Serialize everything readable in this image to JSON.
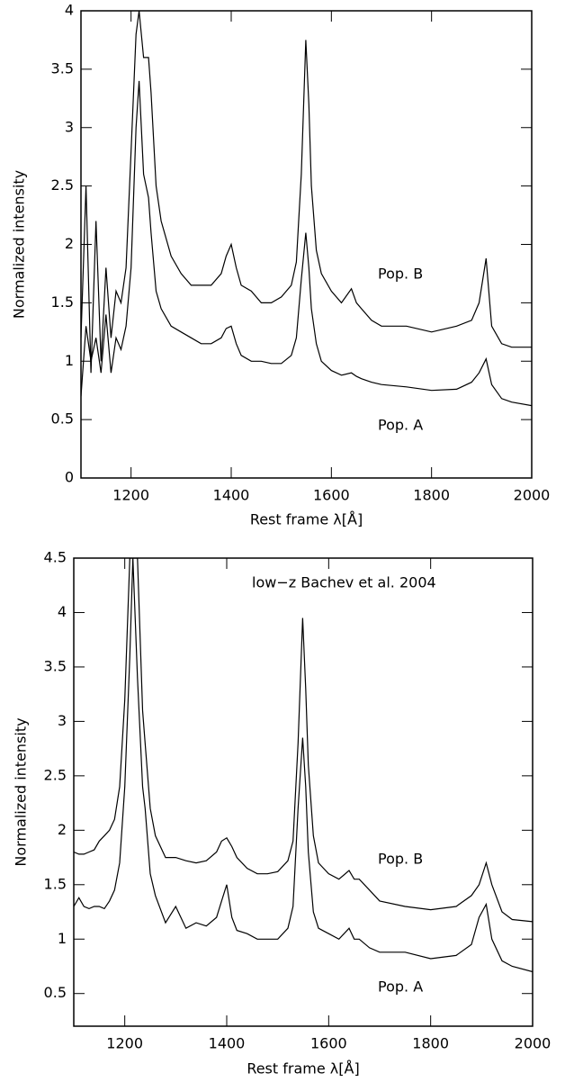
{
  "chart_data": [
    {
      "type": "line",
      "x_label": "Rest frame λ[Å]",
      "y_label": "Normalized intensity",
      "xlim": [
        1100,
        2000
      ],
      "xticks": [
        1200,
        1400,
        1600,
        1800,
        2000
      ],
      "ylim": [
        0,
        4
      ],
      "yticks": [
        0,
        0.5,
        1,
        1.5,
        2,
        2.5,
        3,
        3.5,
        4
      ],
      "annotations": [
        "Pop. B",
        "Pop. A"
      ],
      "x": [
        1100,
        1110,
        1120,
        1130,
        1140,
        1150,
        1160,
        1170,
        1180,
        1190,
        1200,
        1210,
        1216,
        1225,
        1235,
        1240,
        1250,
        1260,
        1280,
        1300,
        1320,
        1340,
        1360,
        1380,
        1390,
        1400,
        1410,
        1420,
        1440,
        1460,
        1480,
        1500,
        1520,
        1530,
        1540,
        1549,
        1555,
        1560,
        1570,
        1580,
        1600,
        1620,
        1640,
        1650,
        1660,
        1680,
        1700,
        1750,
        1800,
        1850,
        1880,
        1895,
        1909,
        1920,
        1940,
        1960,
        2000
      ],
      "series": [
        {
          "color": "#000000",
          "values": [
            1.2,
            2.5,
            0.9,
            2.2,
            1.0,
            1.8,
            1.2,
            1.6,
            1.5,
            1.8,
            2.8,
            3.8,
            4.0,
            3.6,
            3.6,
            3.3,
            2.5,
            2.2,
            1.9,
            1.75,
            1.65,
            1.65,
            1.65,
            1.75,
            1.9,
            2.0,
            1.8,
            1.65,
            1.6,
            1.5,
            1.5,
            1.55,
            1.65,
            1.85,
            2.6,
            3.75,
            3.2,
            2.5,
            1.95,
            1.75,
            1.6,
            1.5,
            1.62,
            1.5,
            1.45,
            1.35,
            1.3,
            1.3,
            1.25,
            1.3,
            1.35,
            1.5,
            1.88,
            1.3,
            1.15,
            1.12,
            1.12
          ]
        },
        {
          "color": "#000000",
          "values": [
            0.7,
            1.3,
            1.0,
            1.2,
            0.9,
            1.4,
            0.9,
            1.2,
            1.1,
            1.3,
            1.8,
            3.0,
            3.4,
            2.6,
            2.4,
            2.1,
            1.6,
            1.45,
            1.3,
            1.25,
            1.2,
            1.15,
            1.15,
            1.2,
            1.28,
            1.3,
            1.15,
            1.05,
            1.0,
            1.0,
            0.98,
            0.98,
            1.05,
            1.2,
            1.7,
            2.1,
            1.8,
            1.45,
            1.15,
            1.0,
            0.92,
            0.88,
            0.9,
            0.87,
            0.85,
            0.82,
            0.8,
            0.78,
            0.75,
            0.76,
            0.82,
            0.9,
            1.02,
            0.8,
            0.68,
            0.65,
            0.62
          ]
        }
      ]
    },
    {
      "type": "line",
      "x_label": "Rest frame λ[Å]",
      "y_label": "Normalized intensity",
      "xlim": [
        1100,
        2000
      ],
      "xticks": [
        1200,
        1400,
        1600,
        1800,
        2000
      ],
      "ylim": [
        0.2,
        4.5
      ],
      "yticks": [
        0.5,
        1,
        1.5,
        2,
        2.5,
        3,
        3.5,
        4,
        4.5
      ],
      "annotations": [
        "low−z Bachev et al. 2004",
        "Pop. B",
        "Pop. A"
      ],
      "x": [
        1100,
        1110,
        1120,
        1130,
        1140,
        1150,
        1160,
        1170,
        1180,
        1190,
        1200,
        1210,
        1216,
        1225,
        1235,
        1240,
        1250,
        1260,
        1280,
        1300,
        1320,
        1340,
        1360,
        1380,
        1390,
        1400,
        1410,
        1420,
        1440,
        1460,
        1480,
        1500,
        1520,
        1530,
        1540,
        1549,
        1555,
        1560,
        1570,
        1580,
        1600,
        1620,
        1640,
        1650,
        1660,
        1680,
        1700,
        1750,
        1800,
        1850,
        1880,
        1895,
        1909,
        1920,
        1940,
        1960,
        2000
      ],
      "series": [
        {
          "color": "#000000",
          "values": [
            1.8,
            1.78,
            1.78,
            1.8,
            1.82,
            1.9,
            1.95,
            2.0,
            2.1,
            2.4,
            3.2,
            4.5,
            4.5,
            4.5,
            3.1,
            2.8,
            2.2,
            1.95,
            1.75,
            1.75,
            1.72,
            1.7,
            1.72,
            1.8,
            1.9,
            1.93,
            1.85,
            1.75,
            1.65,
            1.6,
            1.6,
            1.62,
            1.72,
            1.9,
            2.8,
            3.95,
            3.3,
            2.6,
            1.95,
            1.7,
            1.6,
            1.55,
            1.63,
            1.55,
            1.55,
            1.45,
            1.35,
            1.3,
            1.27,
            1.3,
            1.4,
            1.5,
            1.7,
            1.5,
            1.25,
            1.18,
            1.16
          ]
        },
        {
          "color": "#000000",
          "values": [
            1.3,
            1.38,
            1.3,
            1.28,
            1.3,
            1.3,
            1.28,
            1.35,
            1.45,
            1.7,
            2.4,
            3.6,
            4.5,
            3.4,
            2.4,
            2.2,
            1.6,
            1.4,
            1.15,
            1.3,
            1.1,
            1.15,
            1.12,
            1.2,
            1.35,
            1.5,
            1.2,
            1.08,
            1.05,
            1.0,
            1.0,
            1.0,
            1.1,
            1.3,
            2.2,
            2.85,
            2.4,
            1.8,
            1.25,
            1.1,
            1.05,
            1.0,
            1.1,
            1.0,
            1.0,
            0.92,
            0.88,
            0.88,
            0.82,
            0.85,
            0.95,
            1.2,
            1.32,
            1.0,
            0.8,
            0.75,
            0.7
          ]
        }
      ]
    }
  ]
}
